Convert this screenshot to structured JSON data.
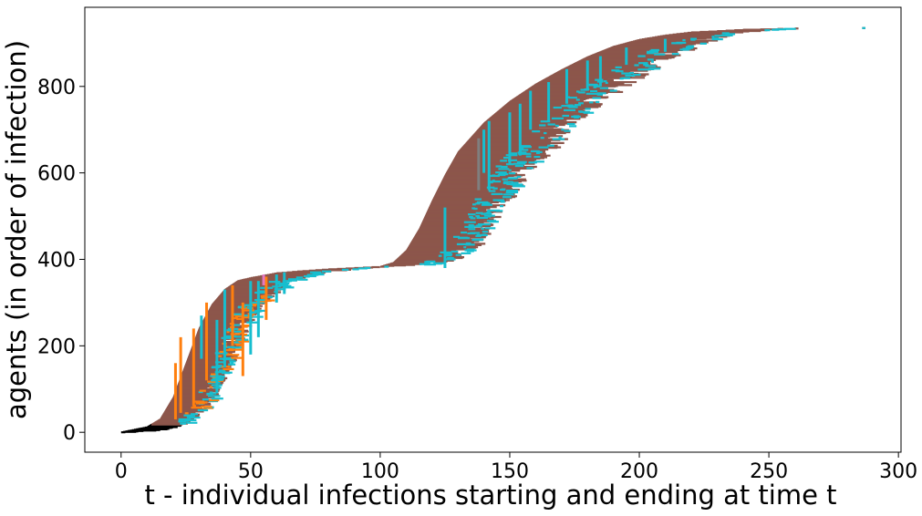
{
  "chart_data": {
    "type": "scatter",
    "title": "",
    "xlabel": "t - individual infections starting and ending at time t",
    "ylabel": "agents (in order of infection)",
    "xlim": [
      -14,
      301
    ],
    "ylim": [
      -46,
      983
    ],
    "xticks": [
      0,
      50,
      100,
      150,
      200,
      250,
      300
    ],
    "yticks": [
      0,
      200,
      400,
      600,
      800
    ],
    "grid": false,
    "legend": "none",
    "colors": {
      "main": "#8c564b",
      "secondary": "#17becf",
      "tertiary": "#ff7f0e",
      "early": "#000000",
      "rare_pink": "#e377c2",
      "rare_gray": "#7f7f7f"
    },
    "infection_start_curve": {
      "x": [
        0,
        10,
        15,
        20,
        25,
        30,
        35,
        40,
        45,
        50,
        60,
        70,
        80,
        90,
        100,
        105,
        110,
        115,
        120,
        125,
        130,
        140,
        150,
        160,
        170,
        180,
        190,
        200,
        210,
        220,
        240,
        260,
        286
      ],
      "y": [
        0,
        12,
        30,
        80,
        160,
        240,
        295,
        330,
        350,
        357,
        368,
        373,
        377,
        380,
        383,
        392,
        420,
        470,
        535,
        595,
        648,
        715,
        765,
        805,
        838,
        868,
        892,
        908,
        918,
        925,
        931,
        934,
        935
      ]
    },
    "infection_end_curve": {
      "x": [
        3,
        18,
        25,
        30,
        35,
        40,
        45,
        50,
        55,
        60,
        65,
        70,
        80,
        95,
        105,
        120,
        130,
        140,
        150,
        160,
        170,
        180,
        190,
        200,
        210,
        220,
        230,
        240,
        250,
        260,
        286
      ],
      "y": [
        0,
        5,
        15,
        35,
        60,
        110,
        170,
        240,
        290,
        315,
        335,
        352,
        370,
        380,
        384,
        388,
        395,
        430,
        520,
        610,
        660,
        730,
        770,
        810,
        848,
        880,
        905,
        922,
        930,
        934,
        935
      ]
    }
  }
}
